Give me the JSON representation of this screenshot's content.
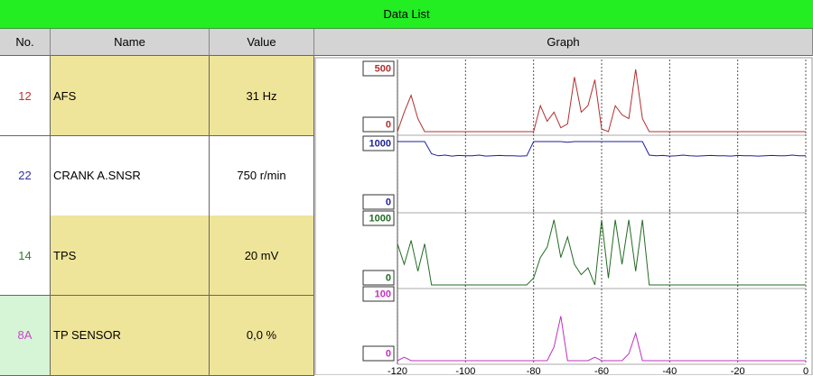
{
  "title": "Data List",
  "columns": [
    "No.",
    "Name",
    "Value",
    "Graph"
  ],
  "rows": [
    {
      "no": "12",
      "name": "AFS",
      "value": "31 Hz"
    },
    {
      "no": "22",
      "name": "CRANK A.SNSR",
      "value": "750 r/min"
    },
    {
      "no": "14",
      "name": "TPS",
      "value": "20 mV"
    },
    {
      "no": "8A",
      "name": "TP SENSOR",
      "value": "0,0 %"
    }
  ],
  "chart_data": [
    {
      "type": "line",
      "color": "#b03030",
      "x": [
        -120,
        -118,
        -116,
        -114,
        -112,
        -110,
        -108,
        -106,
        -104,
        -102,
        -100,
        -98,
        -96,
        -94,
        -92,
        -90,
        -88,
        -86,
        -84,
        -82,
        -80,
        -78,
        -76,
        -74,
        -72,
        -70,
        -68,
        -66,
        -64,
        -62,
        -60,
        -58,
        -56,
        -54,
        -52,
        -50,
        -48,
        -46,
        -44,
        -42,
        -40,
        -38,
        -36,
        -34,
        -32,
        -30,
        -28,
        -26,
        -24,
        -22,
        -20,
        -18,
        -16,
        -14,
        -12,
        -10,
        -8,
        -6,
        -4,
        -2,
        0
      ],
      "values": [
        0,
        150,
        280,
        100,
        0,
        0,
        0,
        0,
        0,
        0,
        0,
        0,
        0,
        0,
        0,
        0,
        0,
        0,
        0,
        0,
        0,
        200,
        80,
        150,
        30,
        60,
        420,
        150,
        200,
        400,
        20,
        0,
        200,
        130,
        100,
        480,
        100,
        0,
        0,
        0,
        0,
        0,
        0,
        0,
        0,
        0,
        0,
        0,
        0,
        0,
        0,
        0,
        0,
        0,
        0,
        0,
        0,
        0,
        0,
        0,
        0
      ],
      "xlim": [
        -120,
        0
      ],
      "xticks": [
        -120,
        -100,
        -80,
        -60,
        -40,
        -20,
        0
      ],
      "ylim": [
        0,
        500
      ],
      "yticks": [
        0,
        500
      ]
    },
    {
      "type": "line",
      "color": "#1f1f9a",
      "x": [
        -120,
        -118,
        -116,
        -114,
        -112,
        -110,
        -108,
        -106,
        -104,
        -102,
        -100,
        -98,
        -96,
        -94,
        -92,
        -90,
        -88,
        -86,
        -84,
        -82,
        -80,
        -78,
        -76,
        -74,
        -72,
        -70,
        -68,
        -66,
        -64,
        -62,
        -60,
        -58,
        -56,
        -54,
        -52,
        -50,
        -48,
        -46,
        -44,
        -42,
        -40,
        -38,
        -36,
        -34,
        -32,
        -30,
        -28,
        -26,
        -24,
        -22,
        -20,
        -18,
        -16,
        -14,
        -12,
        -10,
        -8,
        -6,
        -4,
        -2,
        0
      ],
      "values": [
        1000,
        1000,
        1000,
        1000,
        1000,
        820,
        790,
        800,
        785,
        795,
        790,
        790,
        800,
        785,
        790,
        795,
        790,
        790,
        785,
        790,
        1000,
        1000,
        1000,
        1000,
        1000,
        990,
        1000,
        1000,
        1000,
        1000,
        1000,
        1000,
        1000,
        1000,
        1000,
        1000,
        1000,
        800,
        790,
        795,
        785,
        790,
        800,
        790,
        785,
        790,
        795,
        790,
        790,
        785,
        795,
        790,
        790,
        785,
        790,
        795,
        790,
        790,
        800,
        790,
        790
      ],
      "xlim": [
        -120,
        0
      ],
      "xticks": [
        -120,
        -100,
        -80,
        -60,
        -40,
        -20,
        0
      ],
      "ylim": [
        0,
        1000
      ],
      "yticks": [
        0,
        1000
      ]
    },
    {
      "type": "line",
      "color": "#236b23",
      "x": [
        -120,
        -118,
        -116,
        -114,
        -112,
        -110,
        -108,
        -106,
        -104,
        -102,
        -100,
        -98,
        -96,
        -94,
        -92,
        -90,
        -88,
        -86,
        -84,
        -82,
        -80,
        -78,
        -76,
        -74,
        -72,
        -70,
        -68,
        -66,
        -64,
        -62,
        -60,
        -58,
        -56,
        -54,
        -52,
        -50,
        -48,
        -46,
        -44,
        -42,
        -40,
        -38,
        -36,
        -34,
        -32,
        -30,
        -28,
        -26,
        -24,
        -22,
        -20,
        -18,
        -16,
        -14,
        -12,
        -10,
        -8,
        -6,
        -4,
        -2,
        0
      ],
      "values": [
        600,
        300,
        650,
        200,
        600,
        0,
        0,
        0,
        0,
        0,
        0,
        0,
        0,
        0,
        0,
        0,
        0,
        0,
        0,
        0,
        100,
        400,
        550,
        950,
        400,
        700,
        300,
        150,
        250,
        0,
        950,
        100,
        950,
        300,
        950,
        200,
        950,
        0,
        0,
        0,
        0,
        0,
        0,
        0,
        0,
        0,
        0,
        0,
        0,
        0,
        0,
        0,
        0,
        0,
        0,
        0,
        0,
        0,
        0,
        0,
        0
      ],
      "xlim": [
        -120,
        0
      ],
      "xticks": [
        -120,
        -100,
        -80,
        -60,
        -40,
        -20,
        0
      ],
      "ylim": [
        0,
        1000
      ],
      "yticks": [
        0,
        1000
      ]
    },
    {
      "type": "line",
      "color": "#c030c0",
      "x": [
        -120,
        -118,
        -116,
        -114,
        -112,
        -110,
        -108,
        -106,
        -104,
        -102,
        -100,
        -98,
        -96,
        -94,
        -92,
        -90,
        -88,
        -86,
        -84,
        -82,
        -80,
        -78,
        -76,
        -74,
        -72,
        -70,
        -68,
        -66,
        -64,
        -62,
        -60,
        -58,
        -56,
        -54,
        -52,
        -50,
        -48,
        -46,
        -44,
        -42,
        -40,
        -38,
        -36,
        -34,
        -32,
        -30,
        -28,
        -26,
        -24,
        -22,
        -20,
        -18,
        -16,
        -14,
        -12,
        -10,
        -8,
        -6,
        -4,
        -2,
        0
      ],
      "values": [
        0,
        5,
        0,
        0,
        0,
        0,
        0,
        0,
        0,
        0,
        0,
        0,
        0,
        0,
        0,
        0,
        0,
        0,
        0,
        0,
        0,
        0,
        0,
        20,
        65,
        0,
        0,
        0,
        0,
        5,
        0,
        0,
        0,
        0,
        10,
        40,
        0,
        0,
        0,
        0,
        0,
        0,
        0,
        0,
        0,
        0,
        0,
        0,
        0,
        0,
        0,
        0,
        0,
        0,
        0,
        0,
        0,
        0,
        0,
        0,
        0
      ],
      "xlim": [
        -120,
        0
      ],
      "xticks": [
        -120,
        -100,
        -80,
        -60,
        -40,
        -20,
        0
      ],
      "ylim": [
        0,
        100
      ],
      "yticks": [
        0,
        100
      ]
    }
  ]
}
